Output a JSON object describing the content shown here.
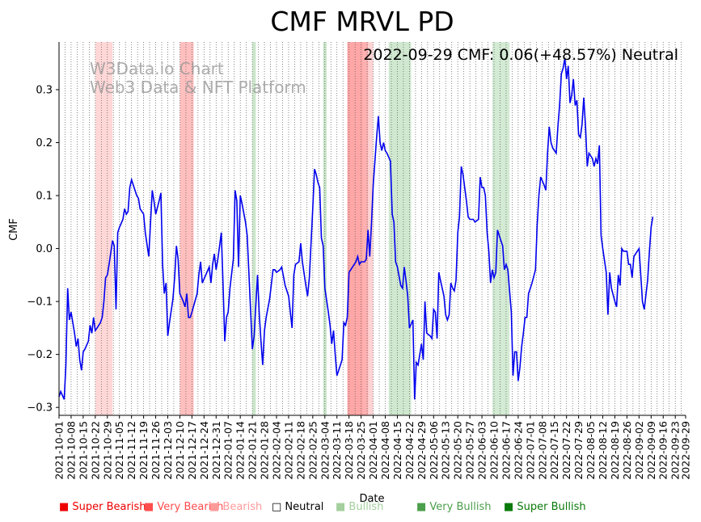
{
  "chart_data": {
    "type": "line",
    "title": "CMF MRVL PD",
    "annotation": "2022-09-29 CMF: 0.06(+48.57%) Neutral",
    "watermark_line1": "W3Data.io Chart",
    "watermark_line2": "Web3 Data & NFT Platform",
    "xlabel": "Date",
    "ylabel": "CMF",
    "ylim": [
      -0.315,
      0.39
    ],
    "yticks": [
      -0.3,
      -0.2,
      -0.1,
      0.0,
      0.1,
      0.2,
      0.3
    ],
    "ytick_labels": [
      "−0.3",
      "−0.2",
      "−0.1",
      "0.0",
      "0.1",
      "0.2",
      "0.3"
    ],
    "x_start": "2021-10-01",
    "x_end": "2022-09-29",
    "xtick_labels": [
      "2021-10-01",
      "2021-10-08",
      "2021-10-15",
      "2021-10-22",
      "2021-10-29",
      "2021-11-05",
      "2021-11-12",
      "2021-11-19",
      "2021-11-26",
      "2021-12-03",
      "2021-12-10",
      "2021-12-17",
      "2021-12-24",
      "2021-12-31",
      "2022-01-07",
      "2022-01-14",
      "2022-01-21",
      "2022-01-28",
      "2022-02-04",
      "2022-02-11",
      "2022-02-18",
      "2022-02-25",
      "2022-03-04",
      "2022-03-11",
      "2022-03-18",
      "2022-03-25",
      "2022-04-01",
      "2022-04-08",
      "2022-04-15",
      "2022-04-22",
      "2022-04-29",
      "2022-05-06",
      "2022-05-13",
      "2022-05-20",
      "2022-05-27",
      "2022-06-03",
      "2022-06-10",
      "2022-06-17",
      "2022-06-24",
      "2022-07-01",
      "2022-07-08",
      "2022-07-15",
      "2022-07-22",
      "2022-07-29",
      "2022-08-05",
      "2022-08-12",
      "2022-08-19",
      "2022-08-26",
      "2022-09-02",
      "2022-09-09",
      "2022-09-16",
      "2022-09-23",
      "2022-09-29"
    ],
    "series_name": "CMF",
    "series_color": "#0000ee",
    "points": [
      [
        0,
        -0.28
      ],
      [
        1,
        -0.27
      ],
      [
        3,
        -0.285
      ],
      [
        4,
        -0.22
      ],
      [
        5,
        -0.075
      ],
      [
        6,
        -0.135
      ],
      [
        7,
        -0.12
      ],
      [
        9,
        -0.16
      ],
      [
        10,
        -0.185
      ],
      [
        11,
        -0.17
      ],
      [
        12,
        -0.21
      ],
      [
        13,
        -0.23
      ],
      [
        14,
        -0.195
      ],
      [
        15,
        -0.19
      ],
      [
        17,
        -0.175
      ],
      [
        18,
        -0.145
      ],
      [
        19,
        -0.16
      ],
      [
        20,
        -0.13
      ],
      [
        21,
        -0.155
      ],
      [
        22,
        -0.15
      ],
      [
        24,
        -0.14
      ],
      [
        25,
        -0.13
      ],
      [
        26,
        -0.1
      ],
      [
        27,
        -0.055
      ],
      [
        28,
        -0.05
      ],
      [
        29,
        -0.03
      ],
      [
        31,
        0.015
      ],
      [
        32,
        0.005
      ],
      [
        33,
        -0.115
      ],
      [
        34,
        0.03
      ],
      [
        35,
        0.04
      ],
      [
        37,
        0.055
      ],
      [
        38,
        0.075
      ],
      [
        39,
        0.065
      ],
      [
        40,
        0.07
      ],
      [
        41,
        0.115
      ],
      [
        42,
        0.13
      ],
      [
        43,
        0.12
      ],
      [
        45,
        0.1
      ],
      [
        46,
        0.095
      ],
      [
        47,
        0.075
      ],
      [
        49,
        0.065
      ],
      [
        50,
        0.03
      ],
      [
        52,
        -0.015
      ],
      [
        53,
        0.05
      ],
      [
        54,
        0.11
      ],
      [
        55,
        0.09
      ],
      [
        56,
        0.065
      ],
      [
        58,
        0.09
      ],
      [
        59,
        0.105
      ],
      [
        60,
        -0.03
      ],
      [
        61,
        -0.085
      ],
      [
        62,
        -0.065
      ],
      [
        63,
        -0.165
      ],
      [
        64,
        -0.14
      ],
      [
        66,
        -0.095
      ],
      [
        67,
        -0.055
      ],
      [
        68,
        0.005
      ],
      [
        69,
        -0.02
      ],
      [
        70,
        -0.085
      ],
      [
        72,
        -0.1
      ],
      [
        73,
        -0.11
      ],
      [
        74,
        -0.085
      ],
      [
        75,
        -0.13
      ],
      [
        76,
        -0.13
      ],
      [
        77,
        -0.12
      ],
      [
        80,
        -0.085
      ],
      [
        81,
        -0.05
      ],
      [
        82,
        -0.025
      ],
      [
        83,
        -0.065
      ],
      [
        85,
        -0.05
      ],
      [
        87,
        -0.035
      ],
      [
        88,
        -0.065
      ],
      [
        89,
        -0.03
      ],
      [
        90,
        -0.01
      ],
      [
        91,
        -0.04
      ],
      [
        92,
        -0.02
      ],
      [
        93,
        0.005
      ],
      [
        94,
        0.03
      ],
      [
        95,
        -0.065
      ],
      [
        96,
        -0.175
      ],
      [
        97,
        -0.13
      ],
      [
        98,
        -0.12
      ],
      [
        99,
        -0.075
      ],
      [
        101,
        -0.02
      ],
      [
        102,
        0.11
      ],
      [
        103,
        0.09
      ],
      [
        104,
        -0.035
      ],
      [
        105,
        0.1
      ],
      [
        106,
        0.085
      ],
      [
        108,
        0.05
      ],
      [
        109,
        0.025
      ],
      [
        110,
        -0.045
      ],
      [
        112,
        -0.19
      ],
      [
        113,
        -0.165
      ],
      [
        115,
        -0.05
      ],
      [
        116,
        -0.125
      ],
      [
        117,
        -0.175
      ],
      [
        118,
        -0.22
      ],
      [
        119,
        -0.155
      ],
      [
        120,
        -0.13
      ],
      [
        122,
        -0.095
      ],
      [
        124,
        -0.04
      ],
      [
        125,
        -0.04
      ],
      [
        126,
        -0.045
      ],
      [
        128,
        -0.04
      ],
      [
        129,
        -0.035
      ],
      [
        131,
        -0.07
      ],
      [
        133,
        -0.09
      ],
      [
        135,
        -0.15
      ],
      [
        136,
        -0.05
      ],
      [
        137,
        -0.03
      ],
      [
        139,
        -0.025
      ],
      [
        140,
        0.01
      ],
      [
        141,
        -0.025
      ],
      [
        143,
        -0.07
      ],
      [
        144,
        -0.09
      ],
      [
        145,
        -0.055
      ],
      [
        147,
        0.075
      ],
      [
        148,
        0.15
      ],
      [
        149,
        0.14
      ],
      [
        150,
        0.125
      ],
      [
        151,
        0.115
      ],
      [
        152,
        0.02
      ],
      [
        153,
        0.005
      ],
      [
        154,
        -0.075
      ],
      [
        156,
        -0.12
      ],
      [
        157,
        -0.145
      ],
      [
        158,
        -0.18
      ],
      [
        159,
        -0.155
      ],
      [
        160,
        -0.2
      ],
      [
        161,
        -0.24
      ],
      [
        162,
        -0.23
      ],
      [
        164,
        -0.21
      ],
      [
        165,
        -0.14
      ],
      [
        166,
        -0.145
      ],
      [
        167,
        -0.13
      ],
      [
        168,
        -0.045
      ],
      [
        169,
        -0.04
      ],
      [
        171,
        -0.03
      ],
      [
        172,
        -0.025
      ],
      [
        173,
        -0.015
      ],
      [
        174,
        -0.03
      ],
      [
        175,
        -0.025
      ],
      [
        177,
        -0.025
      ],
      [
        178,
        -0.02
      ],
      [
        179,
        0.035
      ],
      [
        180,
        -0.015
      ],
      [
        181,
        0.045
      ],
      [
        182,
        0.12
      ],
      [
        184,
        0.21
      ],
      [
        185,
        0.25
      ],
      [
        186,
        0.2
      ],
      [
        187,
        0.185
      ],
      [
        188,
        0.2
      ],
      [
        189,
        0.185
      ],
      [
        190,
        0.18
      ],
      [
        192,
        0.165
      ],
      [
        193,
        0.065
      ],
      [
        194,
        0.05
      ],
      [
        195,
        -0.025
      ],
      [
        196,
        -0.035
      ],
      [
        198,
        -0.07
      ],
      [
        199,
        -0.075
      ],
      [
        200,
        -0.035
      ],
      [
        201,
        -0.06
      ],
      [
        202,
        -0.09
      ],
      [
        203,
        -0.15
      ],
      [
        205,
        -0.135
      ],
      [
        206,
        -0.285
      ],
      [
        207,
        -0.215
      ],
      [
        208,
        -0.22
      ],
      [
        209,
        -0.2
      ],
      [
        210,
        -0.18
      ],
      [
        211,
        -0.21
      ],
      [
        212,
        -0.1
      ],
      [
        213,
        -0.16
      ],
      [
        215,
        -0.165
      ],
      [
        216,
        -0.17
      ],
      [
        217,
        -0.115
      ],
      [
        218,
        -0.12
      ],
      [
        219,
        -0.17
      ],
      [
        220,
        -0.045
      ],
      [
        221,
        -0.06
      ],
      [
        223,
        -0.09
      ],
      [
        224,
        -0.125
      ],
      [
        225,
        -0.135
      ],
      [
        226,
        -0.125
      ],
      [
        227,
        -0.065
      ],
      [
        228,
        -0.075
      ],
      [
        229,
        -0.08
      ],
      [
        230,
        -0.06
      ],
      [
        231,
        0.03
      ],
      [
        232,
        0.06
      ],
      [
        233,
        0.155
      ],
      [
        234,
        0.14
      ],
      [
        236,
        0.09
      ],
      [
        237,
        0.06
      ],
      [
        238,
        0.055
      ],
      [
        240,
        0.055
      ],
      [
        241,
        0.05
      ],
      [
        243,
        0.055
      ],
      [
        244,
        0.135
      ],
      [
        245,
        0.115
      ],
      [
        246,
        0.115
      ],
      [
        247,
        0.1
      ],
      [
        248,
        0.03
      ],
      [
        249,
        -0.005
      ],
      [
        250,
        -0.065
      ],
      [
        251,
        -0.04
      ],
      [
        252,
        -0.055
      ],
      [
        253,
        -0.045
      ],
      [
        254,
        0.035
      ],
      [
        255,
        0.025
      ],
      [
        257,
        0.005
      ],
      [
        258,
        -0.04
      ],
      [
        259,
        -0.03
      ],
      [
        260,
        -0.04
      ],
      [
        262,
        -0.12
      ],
      [
        263,
        -0.24
      ],
      [
        264,
        -0.195
      ],
      [
        265,
        -0.195
      ],
      [
        266,
        -0.25
      ],
      [
        267,
        -0.225
      ],
      [
        268,
        -0.185
      ],
      [
        269,
        -0.16
      ],
      [
        270,
        -0.13
      ],
      [
        271,
        -0.13
      ],
      [
        272,
        -0.085
      ],
      [
        273,
        -0.075
      ],
      [
        274,
        -0.065
      ],
      [
        276,
        -0.04
      ],
      [
        277,
        0.045
      ],
      [
        278,
        0.1
      ],
      [
        279,
        0.135
      ],
      [
        281,
        0.12
      ],
      [
        282,
        0.11
      ],
      [
        283,
        0.18
      ],
      [
        284,
        0.23
      ],
      [
        285,
        0.2
      ],
      [
        286,
        0.19
      ],
      [
        287,
        0.185
      ],
      [
        288,
        0.18
      ],
      [
        289,
        0.23
      ],
      [
        290,
        0.27
      ],
      [
        291,
        0.33
      ],
      [
        292,
        0.34
      ],
      [
        293,
        0.36
      ],
      [
        294,
        0.32
      ],
      [
        295,
        0.345
      ],
      [
        296,
        0.275
      ],
      [
        297,
        0.29
      ],
      [
        298,
        0.32
      ],
      [
        299,
        0.27
      ],
      [
        300,
        0.28
      ],
      [
        301,
        0.215
      ],
      [
        302,
        0.21
      ],
      [
        303,
        0.235
      ],
      [
        304,
        0.285
      ],
      [
        305,
        0.23
      ],
      [
        306,
        0.155
      ],
      [
        307,
        0.18
      ],
      [
        309,
        0.17
      ],
      [
        310,
        0.155
      ],
      [
        311,
        0.17
      ],
      [
        312,
        0.16
      ],
      [
        313,
        0.195
      ],
      [
        314,
        0.025
      ],
      [
        315,
        0.0
      ],
      [
        317,
        -0.045
      ],
      [
        318,
        -0.125
      ],
      [
        319,
        -0.045
      ],
      [
        320,
        -0.075
      ],
      [
        322,
        -0.1
      ],
      [
        323,
        -0.11
      ],
      [
        324,
        -0.05
      ],
      [
        325,
        -0.07
      ],
      [
        326,
        0.0
      ],
      [
        327,
        -0.005
      ],
      [
        329,
        -0.005
      ],
      [
        330,
        -0.03
      ],
      [
        331,
        -0.03
      ],
      [
        332,
        -0.055
      ],
      [
        333,
        -0.015
      ],
      [
        335,
        -0.005
      ],
      [
        336,
        0.0
      ],
      [
        337,
        -0.05
      ],
      [
        338,
        -0.1
      ],
      [
        339,
        -0.115
      ],
      [
        341,
        -0.06
      ],
      [
        342,
        -0.005
      ],
      [
        343,
        0.04
      ],
      [
        344,
        0.06
      ]
    ],
    "bands": [
      {
        "start": 21,
        "end": 31,
        "color": "#ffb6b6",
        "alpha": 0.55
      },
      {
        "start": 70,
        "end": 78,
        "color": "#ff7070",
        "alpha": 0.45
      },
      {
        "start": 112,
        "end": 114,
        "color": "#a8d5a8",
        "alpha": 0.6
      },
      {
        "start": 153,
        "end": 155,
        "color": "#a8d5a8",
        "alpha": 0.6
      },
      {
        "start": 167,
        "end": 179,
        "color": "#ff5050",
        "alpha": 0.5
      },
      {
        "start": 176,
        "end": 182,
        "color": "#ffb6b6",
        "alpha": 0.6
      },
      {
        "start": 191,
        "end": 204,
        "color": "#a8d5a8",
        "alpha": 0.55
      },
      {
        "start": 251,
        "end": 261,
        "color": "#a8d5a8",
        "alpha": 0.5
      }
    ],
    "legend": [
      {
        "label": "Super Bearish",
        "color": "#ee0000"
      },
      {
        "label": "Very Bearish",
        "color": "#ff4d4d"
      },
      {
        "label": "Bearish",
        "color": "#ff9a9a"
      },
      {
        "label": "Neutral",
        "color": "#000000"
      },
      {
        "label": "Bullish",
        "color": "#a4cf9e"
      },
      {
        "label": "Very Bullish",
        "color": "#4c9f4c"
      },
      {
        "label": "Super Bullish",
        "color": "#0a7a0a"
      }
    ],
    "legend_neutral_marker": "□",
    "legend_marker": "■"
  }
}
